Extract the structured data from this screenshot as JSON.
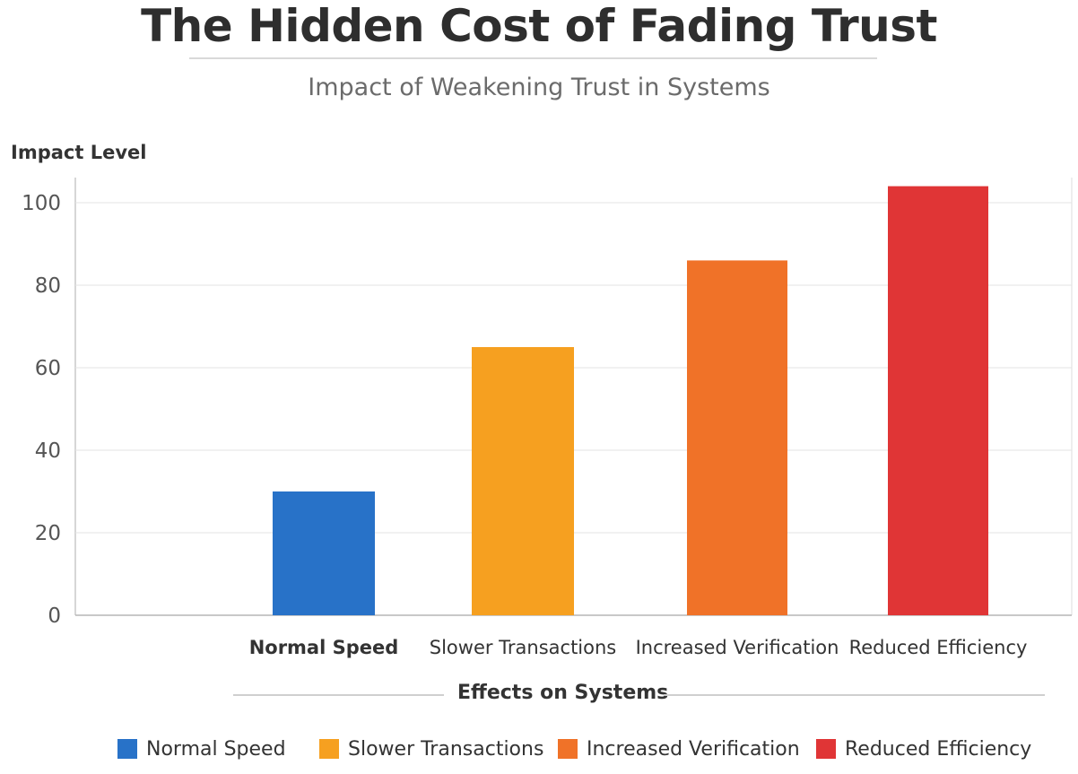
{
  "header": {
    "title": "The Hidden Cost of Fading Trust",
    "subtitle": "Impact of Weakening Trust in Systems"
  },
  "chart_data": {
    "type": "bar",
    "title": "The Hidden Cost of Fading Trust",
    "subtitle": "Impact of Weakening Trust in Systems",
    "xlabel": "Effects on Systems",
    "ylabel": "Impact Level",
    "categories": [
      "Normal Speed",
      "Slower Transactions",
      "Increased Verification",
      "Reduced Efficiency"
    ],
    "values": [
      30,
      65,
      86,
      104
    ],
    "colors": [
      "#2872c8",
      "#f6a020",
      "#f07228",
      "#e03536"
    ],
    "ylim": [
      0,
      105
    ],
    "yticks": [
      0,
      20,
      40,
      60,
      80,
      100
    ],
    "grid": true,
    "legend_position": "bottom",
    "legend": [
      "Normal Speed",
      "Slower Transactions",
      "Increased Verification",
      "Reduced Efficiency"
    ]
  }
}
